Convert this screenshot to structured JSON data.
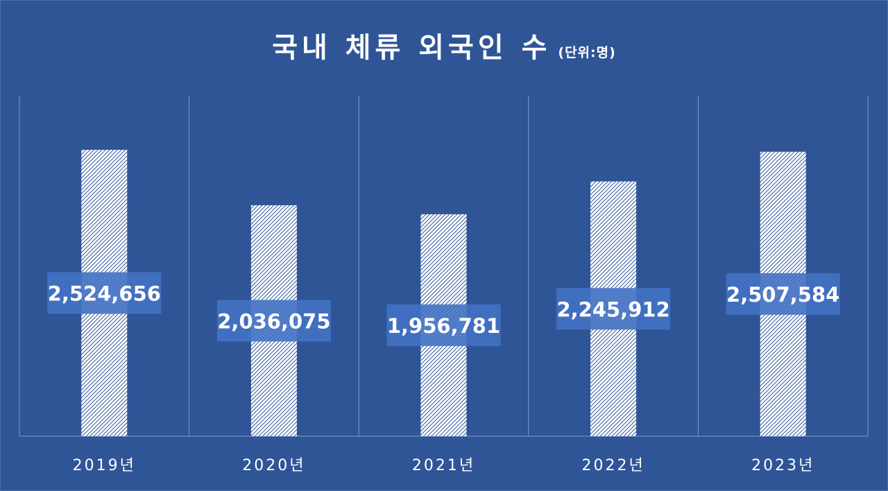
{
  "chart_data": {
    "type": "bar",
    "title": "국내 체류 외국인 수",
    "unit": "(단위:명)",
    "categories": [
      "2019년",
      "2020년",
      "2021년",
      "2022년",
      "2023년"
    ],
    "values": [
      2524656,
      2036075,
      1956781,
      2245912,
      2507584
    ],
    "data_labels": [
      "2,524,656",
      "2,036,075",
      "1,956,781",
      "2,245,912",
      "2,507,584"
    ],
    "xlabel": "",
    "ylabel": "",
    "ylim": [
      0,
      2524656
    ],
    "grid": false,
    "legend": "none",
    "colors": {
      "background": "#2f5597",
      "bar_fill": "#ffffff",
      "bar_hatch": "#2f5597",
      "label_box": "#4472c4",
      "divider": "#7f9cd3"
    }
  }
}
